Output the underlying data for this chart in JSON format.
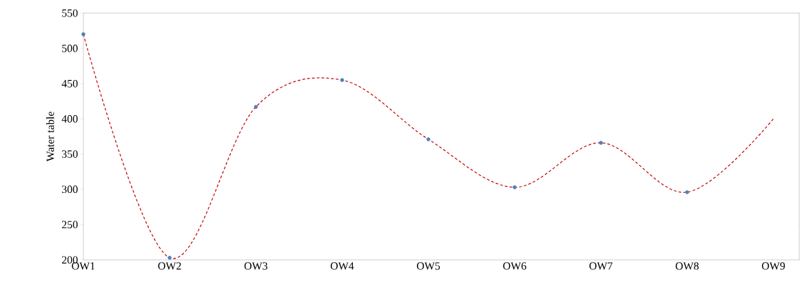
{
  "chart_data": {
    "type": "line",
    "ylabel": "Water table",
    "categories": [
      "OW1",
      "OW2",
      "OW3",
      "OW4",
      "OW5",
      "OW6",
      "OW7",
      "OW8",
      "OW9"
    ],
    "series": [
      {
        "color": "#c00000",
        "marker": "none",
        "line_style": "dashed",
        "values": [
          520,
          203,
          417,
          455,
          371,
          303,
          366,
          296,
          400
        ]
      },
      {
        "type": "scatter",
        "color": "#4f81bd",
        "marker": "circle",
        "values": [
          520,
          203,
          417,
          455,
          371,
          303,
          366,
          296,
          null
        ]
      }
    ],
    "ylim": [
      200,
      550
    ],
    "yticks": [
      200,
      250,
      300,
      350,
      400,
      450,
      500,
      550
    ],
    "grid": false
  }
}
